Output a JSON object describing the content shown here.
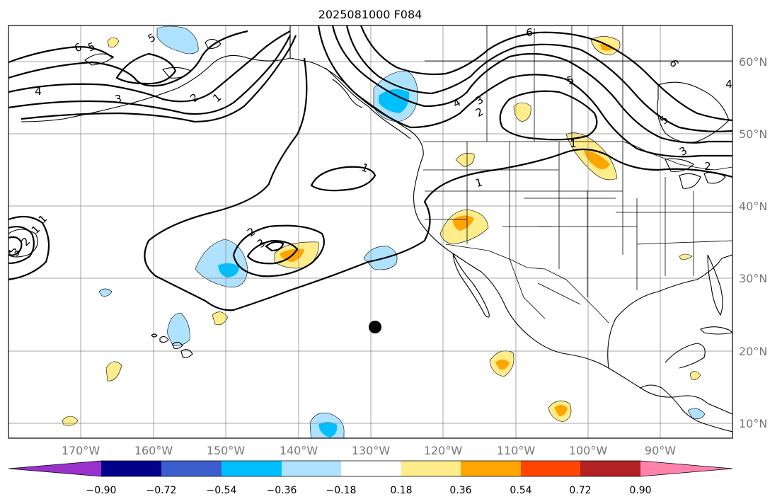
{
  "title": "2025081000 F084",
  "lon_ticks": [
    "170°W",
    "160°W",
    "150°W",
    "140°W",
    "130°W",
    "120°W",
    "110°W",
    "100°W",
    "90°W"
  ],
  "lat_ticks": [
    "60°N",
    "50°N",
    "40°N",
    "30°N",
    "20°N",
    "10°N"
  ],
  "colorbar": {
    "labels": [
      "−0.90",
      "−0.72",
      "−0.54",
      "−0.36",
      "−0.18",
      "0.18",
      "0.36",
      "0.54",
      "0.72",
      "0.90"
    ],
    "colors": [
      "#9932cc",
      "#00008b",
      "#3a5fcd",
      "#00bfff",
      "#aee2ff",
      "#ffffff",
      "#ffec8b",
      "#ffa500",
      "#ff4500",
      "#b22222",
      "#ff82ab"
    ]
  },
  "contour_labels": [
    "6",
    "5",
    "5",
    "4",
    "3",
    "2",
    "1",
    "6",
    "5",
    "4",
    "3",
    "2",
    "1",
    "6",
    "5",
    "4",
    "3",
    "2",
    "1",
    "1",
    "2",
    "3",
    "1",
    "1",
    "2",
    "3",
    "4"
  ],
  "marker": {
    "name": "point",
    "color": "#000000"
  }
}
